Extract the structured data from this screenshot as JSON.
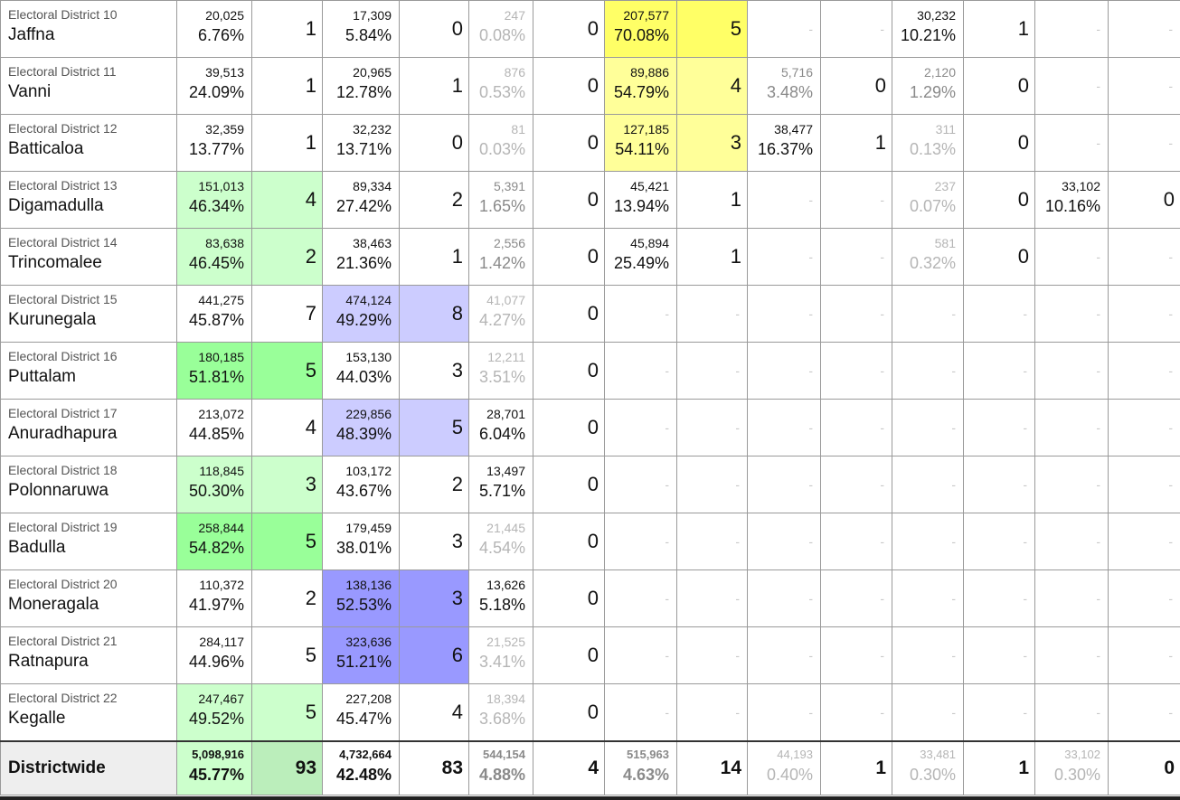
{
  "colors": {
    "green_light": "#ccffcc",
    "green_strong": "#99ff99",
    "blue_light": "#ccccff",
    "blue_strong": "#9999ff",
    "yellow_strong": "#ffff66",
    "yellow_light": "#ffff99",
    "total_label_bg": "#eeeeee"
  },
  "rows": [
    {
      "district": "Electoral District 10",
      "name": "Jaffna",
      "c1": {
        "votes": "20,025",
        "pct": "6.76%",
        "seats": "1"
      },
      "c2": {
        "votes": "17,309",
        "pct": "5.84%",
        "seats": "0"
      },
      "c3": {
        "votes": "247",
        "pct": "0.08%",
        "seats": "0"
      },
      "c4": {
        "votes": "207,577",
        "pct": "70.08%",
        "seats": "5"
      },
      "c5": {
        "votes": "",
        "pct": "",
        "seats": ""
      },
      "c6": {
        "votes": "30,232",
        "pct": "10.21%",
        "seats": "1"
      },
      "c7": {
        "votes": "",
        "pct": "",
        "seats": ""
      }
    },
    {
      "district": "Electoral District 11",
      "name": "Vanni",
      "c1": {
        "votes": "39,513",
        "pct": "24.09%",
        "seats": "1"
      },
      "c2": {
        "votes": "20,965",
        "pct": "12.78%",
        "seats": "1"
      },
      "c3": {
        "votes": "876",
        "pct": "0.53%",
        "seats": "0"
      },
      "c4": {
        "votes": "89,886",
        "pct": "54.79%",
        "seats": "4"
      },
      "c5": {
        "votes": "5,716",
        "pct": "3.48%",
        "seats": "0"
      },
      "c6": {
        "votes": "2,120",
        "pct": "1.29%",
        "seats": "0"
      },
      "c7": {
        "votes": "",
        "pct": "",
        "seats": ""
      }
    },
    {
      "district": "Electoral District 12",
      "name": "Batticaloa",
      "c1": {
        "votes": "32,359",
        "pct": "13.77%",
        "seats": "1"
      },
      "c2": {
        "votes": "32,232",
        "pct": "13.71%",
        "seats": "0"
      },
      "c3": {
        "votes": "81",
        "pct": "0.03%",
        "seats": "0"
      },
      "c4": {
        "votes": "127,185",
        "pct": "54.11%",
        "seats": "3"
      },
      "c5": {
        "votes": "38,477",
        "pct": "16.37%",
        "seats": "1"
      },
      "c6": {
        "votes": "311",
        "pct": "0.13%",
        "seats": "0"
      },
      "c7": {
        "votes": "",
        "pct": "",
        "seats": ""
      }
    },
    {
      "district": "Electoral District 13",
      "name": "Digamadulla",
      "c1": {
        "votes": "151,013",
        "pct": "46.34%",
        "seats": "4"
      },
      "c2": {
        "votes": "89,334",
        "pct": "27.42%",
        "seats": "2"
      },
      "c3": {
        "votes": "5,391",
        "pct": "1.65%",
        "seats": "0"
      },
      "c4": {
        "votes": "45,421",
        "pct": "13.94%",
        "seats": "1"
      },
      "c5": {
        "votes": "",
        "pct": "",
        "seats": ""
      },
      "c6": {
        "votes": "237",
        "pct": "0.07%",
        "seats": "0"
      },
      "c7": {
        "votes": "33,102",
        "pct": "10.16%",
        "seats": "0"
      }
    },
    {
      "district": "Electoral District 14",
      "name": "Trincomalee",
      "c1": {
        "votes": "83,638",
        "pct": "46.45%",
        "seats": "2"
      },
      "c2": {
        "votes": "38,463",
        "pct": "21.36%",
        "seats": "1"
      },
      "c3": {
        "votes": "2,556",
        "pct": "1.42%",
        "seats": "0"
      },
      "c4": {
        "votes": "45,894",
        "pct": "25.49%",
        "seats": "1"
      },
      "c5": {
        "votes": "",
        "pct": "",
        "seats": ""
      },
      "c6": {
        "votes": "581",
        "pct": "0.32%",
        "seats": "0"
      },
      "c7": {
        "votes": "",
        "pct": "",
        "seats": ""
      }
    },
    {
      "district": "Electoral District 15",
      "name": "Kurunegala",
      "c1": {
        "votes": "441,275",
        "pct": "45.87%",
        "seats": "7"
      },
      "c2": {
        "votes": "474,124",
        "pct": "49.29%",
        "seats": "8"
      },
      "c3": {
        "votes": "41,077",
        "pct": "4.27%",
        "seats": "0"
      }
    },
    {
      "district": "Electoral District 16",
      "name": "Puttalam",
      "c1": {
        "votes": "180,185",
        "pct": "51.81%",
        "seats": "5"
      },
      "c2": {
        "votes": "153,130",
        "pct": "44.03%",
        "seats": "3"
      },
      "c3": {
        "votes": "12,211",
        "pct": "3.51%",
        "seats": "0"
      }
    },
    {
      "district": "Electoral District 17",
      "name": "Anuradhapura",
      "c1": {
        "votes": "213,072",
        "pct": "44.85%",
        "seats": "4"
      },
      "c2": {
        "votes": "229,856",
        "pct": "48.39%",
        "seats": "5"
      },
      "c3": {
        "votes": "28,701",
        "pct": "6.04%",
        "seats": "0"
      }
    },
    {
      "district": "Electoral District 18",
      "name": "Polonnaruwa",
      "c1": {
        "votes": "118,845",
        "pct": "50.30%",
        "seats": "3"
      },
      "c2": {
        "votes": "103,172",
        "pct": "43.67%",
        "seats": "2"
      },
      "c3": {
        "votes": "13,497",
        "pct": "5.71%",
        "seats": "0"
      }
    },
    {
      "district": "Electoral District 19",
      "name": "Badulla",
      "c1": {
        "votes": "258,844",
        "pct": "54.82%",
        "seats": "5"
      },
      "c2": {
        "votes": "179,459",
        "pct": "38.01%",
        "seats": "3"
      },
      "c3": {
        "votes": "21,445",
        "pct": "4.54%",
        "seats": "0"
      }
    },
    {
      "district": "Electoral District 20",
      "name": "Moneragala",
      "c1": {
        "votes": "110,372",
        "pct": "41.97%",
        "seats": "2"
      },
      "c2": {
        "votes": "138,136",
        "pct": "52.53%",
        "seats": "3"
      },
      "c3": {
        "votes": "13,626",
        "pct": "5.18%",
        "seats": "0"
      }
    },
    {
      "district": "Electoral District 21",
      "name": "Ratnapura",
      "c1": {
        "votes": "284,117",
        "pct": "44.96%",
        "seats": "5"
      },
      "c2": {
        "votes": "323,636",
        "pct": "51.21%",
        "seats": "6"
      },
      "c3": {
        "votes": "21,525",
        "pct": "3.41%",
        "seats": "0"
      }
    },
    {
      "district": "Electoral District 22",
      "name": "Kegalle",
      "c1": {
        "votes": "247,467",
        "pct": "49.52%",
        "seats": "5"
      },
      "c2": {
        "votes": "227,208",
        "pct": "45.47%",
        "seats": "4"
      },
      "c3": {
        "votes": "18,394",
        "pct": "3.68%",
        "seats": "0"
      }
    }
  ],
  "dash": "-",
  "total": {
    "label": "Districtwide",
    "c1": {
      "votes": "5,098,916",
      "pct": "45.77%",
      "seats": "93"
    },
    "c2": {
      "votes": "4,732,664",
      "pct": "42.48%",
      "seats": "83"
    },
    "c3": {
      "votes": "544,154",
      "pct": "4.88%",
      "seats": "4"
    },
    "c4": {
      "votes": "515,963",
      "pct": "4.63%",
      "seats": "14"
    },
    "c5": {
      "votes": "44,193",
      "pct": "0.40%",
      "seats": "1"
    },
    "c6": {
      "votes": "33,481",
      "pct": "0.30%",
      "seats": "1"
    },
    "c7": {
      "votes": "33,102",
      "pct": "0.30%",
      "seats": "0"
    }
  }
}
